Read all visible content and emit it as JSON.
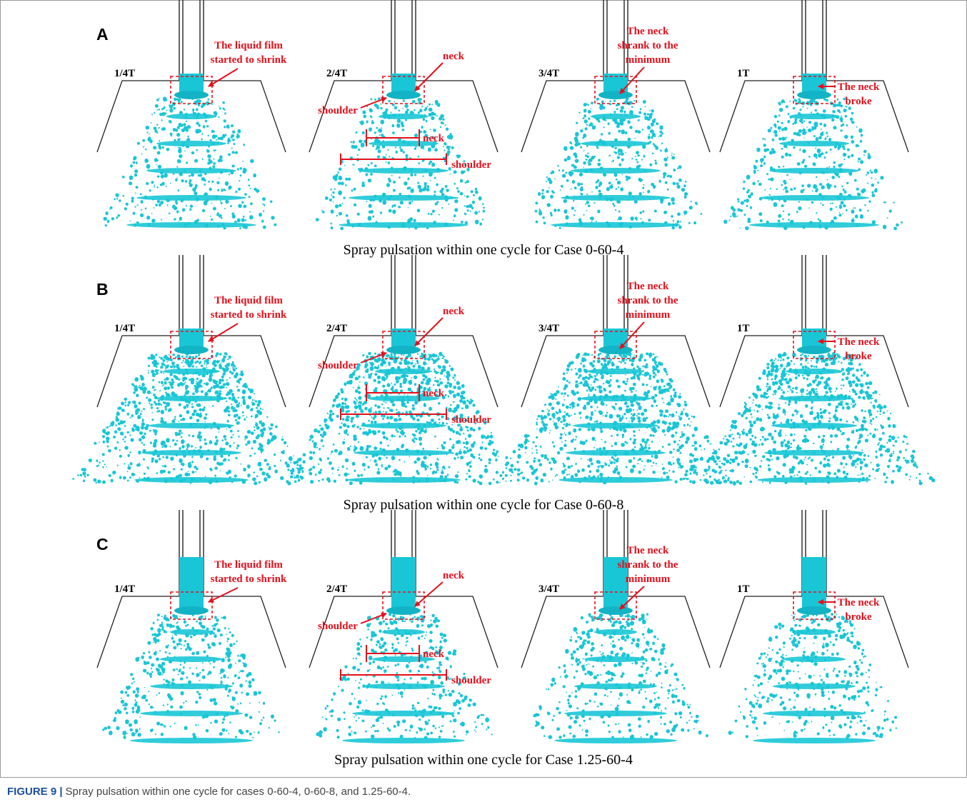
{
  "figure": {
    "panels": [
      {
        "letter": "A",
        "title": "Spray pulsation within one cycle for Case 0-60-4",
        "frames": [
          {
            "time": "1/4T",
            "annotations": [
              "The liquid film",
              "started to shrink"
            ]
          },
          {
            "time": "2/4T",
            "annotations": [
              "neck",
              "shoulder",
              "neck",
              "shoulder"
            ]
          },
          {
            "time": "3/4T",
            "annotations": [
              "The neck",
              "shrank to the",
              "minimum"
            ]
          },
          {
            "time": "1T",
            "annotations": [
              "The neck",
              "broke"
            ]
          }
        ]
      },
      {
        "letter": "B",
        "title": "Spray pulsation within one cycle for Case 0-60-8",
        "frames": [
          {
            "time": "1/4T",
            "annotations": [
              "The liquid film",
              "started to shrink"
            ]
          },
          {
            "time": "2/4T",
            "annotations": [
              "neck",
              "shoulder",
              "neck",
              "shoulder"
            ]
          },
          {
            "time": "3/4T",
            "annotations": [
              "The neck",
              "shrank to the",
              "minimum"
            ]
          },
          {
            "time": "1T",
            "annotations": [
              "The neck",
              "broke"
            ]
          }
        ]
      },
      {
        "letter": "C",
        "title": "Spray pulsation within one cycle for Case 1.25-60-4",
        "frames": [
          {
            "time": "1/4T",
            "annotations": [
              "The liquid film",
              "started to shrink"
            ]
          },
          {
            "time": "2/4T",
            "annotations": [
              "neck",
              "shoulder",
              "neck",
              "shoulder"
            ]
          },
          {
            "time": "3/4T",
            "annotations": [
              "The neck",
              "shrank to the",
              "minimum"
            ]
          },
          {
            "time": "1T",
            "annotations": [
              "The neck",
              "broke"
            ]
          }
        ]
      }
    ],
    "caption_label": "FIGURE 9 |",
    "caption": "Spray pulsation within one cycle for cases 0-60-4, 0-60-8, and 1.25-60-4."
  }
}
